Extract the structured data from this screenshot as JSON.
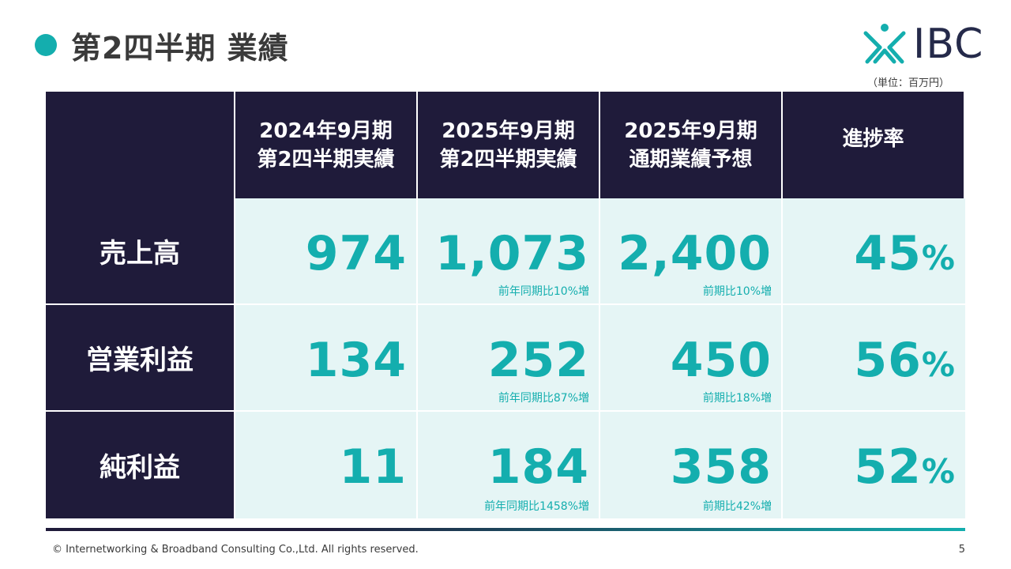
{
  "header": {
    "title": "第2四半期 業績",
    "logo_text": "IBC",
    "unit_note": "（単位：百万円）"
  },
  "table": {
    "columns": [
      {
        "line1": "2024年9月期",
        "line2": "第2四半期実績"
      },
      {
        "line1": "2025年9月期",
        "line2": "第2四半期実績"
      },
      {
        "line1": "2025年9月期",
        "line2": "通期業績予想"
      },
      {
        "line1": "進捗率",
        "line2": ""
      }
    ],
    "rows": [
      {
        "label": "売上高",
        "prev_q2": "974",
        "curr_q2": "1,073",
        "curr_q2_note": "前年同期比10%増",
        "forecast": "2,400",
        "forecast_note": "前期比10%増",
        "progress": "45",
        "progress_unit": "%"
      },
      {
        "label": "営業利益",
        "prev_q2": "134",
        "curr_q2": "252",
        "curr_q2_note": "前年同期比87%増",
        "forecast": "450",
        "forecast_note": "前期比18%増",
        "progress": "56",
        "progress_unit": "%"
      },
      {
        "label": "純利益",
        "prev_q2": "11",
        "curr_q2": "184",
        "curr_q2_note": "前年同期比1458%増",
        "forecast": "358",
        "forecast_note": "前期比42%増",
        "progress": "52",
        "progress_unit": "%"
      }
    ]
  },
  "footer": {
    "copyright": "© Internetworking & Broadband Consulting Co.,Ltd. All rights reserved.",
    "page_number": "5"
  },
  "colors": {
    "navy": "#1f1b3a",
    "teal": "#14aeae",
    "cell_bg": "#e5f5f5",
    "logo_navy": "#252a4a"
  }
}
